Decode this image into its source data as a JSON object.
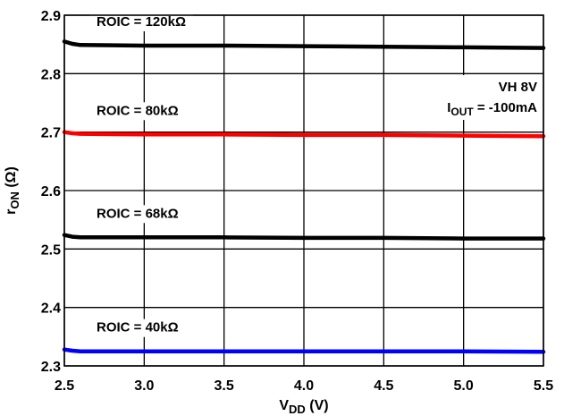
{
  "chart_data": {
    "type": "line",
    "xlabel": {
      "main": "V",
      "sub": "DD",
      "unit": " (V)"
    },
    "ylabel": {
      "main": "r",
      "sub": "ON",
      "unit": " (Ω)"
    },
    "xlim": [
      2.5,
      5.5
    ],
    "ylim": [
      2.3,
      2.9
    ],
    "x_ticks": [
      "2.5",
      "3.0",
      "3.5",
      "4.0",
      "4.5",
      "5.0",
      "5.5"
    ],
    "y_ticks": [
      "2.3",
      "2.4",
      "2.5",
      "2.6",
      "2.7",
      "2.8",
      "2.9"
    ],
    "grid": true,
    "series": [
      {
        "name": "ROIC = 120kΩ",
        "color": "#000000",
        "x": [
          2.5,
          2.55,
          2.6,
          3.0,
          3.5,
          4.0,
          4.5,
          5.0,
          5.5
        ],
        "y": [
          2.855,
          2.851,
          2.849,
          2.848,
          2.848,
          2.847,
          2.846,
          2.845,
          2.844
        ]
      },
      {
        "name": "ROIC = 80kΩ",
        "color": "#ff0000",
        "x": [
          2.5,
          2.55,
          2.6,
          3.0,
          3.5,
          4.0,
          4.5,
          5.0,
          5.5
        ],
        "y": [
          2.7,
          2.698,
          2.697,
          2.696,
          2.696,
          2.695,
          2.695,
          2.694,
          2.693
        ]
      },
      {
        "name": "ROIC = 68kΩ",
        "color": "#000000",
        "x": [
          2.5,
          2.55,
          2.6,
          3.0,
          3.5,
          4.0,
          4.5,
          5.0,
          5.5
        ],
        "y": [
          2.524,
          2.521,
          2.52,
          2.52,
          2.52,
          2.519,
          2.519,
          2.518,
          2.518
        ]
      },
      {
        "name": "ROIC = 40kΩ",
        "color": "#0000ff",
        "x": [
          2.5,
          2.55,
          2.6,
          3.0,
          3.5,
          4.0,
          4.5,
          5.0,
          5.5
        ],
        "y": [
          2.328,
          2.326,
          2.325,
          2.325,
          2.325,
          2.325,
          2.325,
          2.325,
          2.324
        ]
      }
    ],
    "labels": [
      {
        "text": "ROIC = 120kΩ",
        "series": 0
      },
      {
        "text": "ROIC = 80kΩ",
        "series": 1
      },
      {
        "text": "ROIC = 68kΩ",
        "series": 2
      },
      {
        "text": "ROIC = 40kΩ",
        "series": 3
      }
    ],
    "annotations": {
      "line1": "VH 8V",
      "line2_main": "I",
      "line2_sub": "OUT",
      "line2_rest": " = -100mA"
    }
  }
}
